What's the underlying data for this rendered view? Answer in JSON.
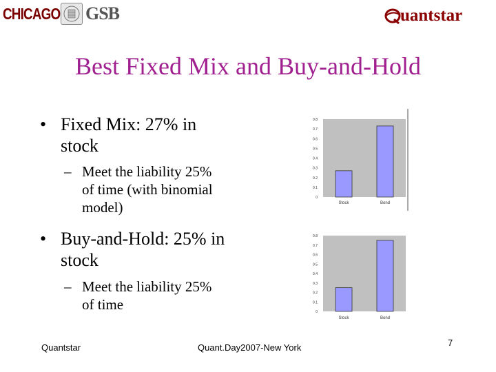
{
  "header": {
    "left_logo_text_1": "CHICAGO",
    "left_logo_text_2": "GSB",
    "right_logo_text": "uantstar"
  },
  "slide": {
    "title": "Best Fixed Mix and Buy-and-Hold",
    "bullets": [
      {
        "text_line1": "Fixed Mix: 27% in",
        "text_line2": "stock",
        "sub": {
          "line1": "Meet the liability 25%",
          "line2": "of time (with binomial",
          "line3": "model)"
        }
      },
      {
        "text_line1": "Buy-and-Hold: 25% in",
        "text_line2": "stock",
        "sub": {
          "line1": "Meet the liability 25%",
          "line2": "of time"
        }
      }
    ],
    "bullet_char": "•",
    "dash_char": "–"
  },
  "colors": {
    "title": "#a02090",
    "bar": "#9999ff",
    "plot_bg": "#c0c0c0",
    "logo_red": "#8b0000"
  },
  "chart_data": [
    {
      "type": "bar",
      "categories": [
        "Stock",
        "Bond"
      ],
      "values": [
        0.27,
        0.73
      ],
      "yticks": [
        "0",
        "0.1",
        "0.2",
        "0.3",
        "0.4",
        "0.5",
        "0.6",
        "0.7",
        "0.8"
      ],
      "ylim": [
        0,
        0.8
      ],
      "grid": false
    },
    {
      "type": "bar",
      "categories": [
        "Stock",
        "Bond"
      ],
      "values": [
        0.25,
        0.75
      ],
      "yticks": [
        "0",
        "0.1",
        "0.2",
        "0.3",
        "0.4",
        "0.5",
        "0.6",
        "0.7",
        "0.8"
      ],
      "ylim": [
        0,
        0.8
      ],
      "grid": false
    }
  ],
  "footer": {
    "left": "Quantstar",
    "center": "Quant.Day2007-New York",
    "page_number": "7"
  }
}
